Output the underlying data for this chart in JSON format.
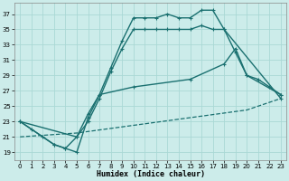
{
  "xlabel": "Humidex (Indice chaleur)",
  "background_color": "#ccecea",
  "grid_color": "#aad8d5",
  "line_color": "#1a7070",
  "xlim": [
    -0.5,
    23.5
  ],
  "ylim": [
    18,
    38.5
  ],
  "yticks": [
    19,
    21,
    23,
    25,
    27,
    29,
    31,
    33,
    35,
    37
  ],
  "xticks": [
    0,
    1,
    2,
    3,
    4,
    5,
    6,
    7,
    8,
    9,
    10,
    11,
    12,
    13,
    14,
    15,
    16,
    17,
    18,
    19,
    20,
    21,
    22,
    23
  ],
  "series": [
    {
      "x": [
        0,
        1,
        2,
        3,
        4,
        5,
        6,
        7,
        8,
        9,
        10,
        11,
        12,
        13,
        14,
        15,
        16,
        17,
        18,
        23
      ],
      "y": [
        23,
        22,
        21,
        20,
        19.5,
        19,
        23.5,
        26.5,
        30,
        33.5,
        36.5,
        36.5,
        36.5,
        37,
        36.5,
        36.5,
        37.5,
        37.5,
        35,
        26
      ],
      "ls": "-",
      "marker": "+",
      "lw": 1.0
    },
    {
      "x": [
        0,
        3,
        4,
        5,
        6,
        7,
        8,
        9,
        10,
        11,
        12,
        13,
        14,
        15,
        16,
        17,
        18,
        19,
        20,
        23
      ],
      "y": [
        23,
        20,
        19.5,
        21,
        23,
        26,
        29.5,
        32.5,
        35,
        35,
        35,
        35,
        35,
        35,
        35.5,
        35,
        35,
        32,
        29,
        26.5
      ],
      "ls": "-",
      "marker": "+",
      "lw": 1.0
    },
    {
      "x": [
        0,
        5,
        6,
        7,
        10,
        15,
        18,
        19,
        20,
        21,
        22,
        23
      ],
      "y": [
        23,
        21,
        24,
        26.5,
        27.5,
        28.5,
        30.5,
        32.5,
        29,
        28.5,
        27.5,
        26.5
      ],
      "ls": "-",
      "marker": "+",
      "lw": 1.0
    },
    {
      "x": [
        0,
        5,
        10,
        15,
        20,
        23
      ],
      "y": [
        21,
        21.5,
        22.5,
        23.5,
        24.5,
        26
      ],
      "ls": "--",
      "marker": null,
      "lw": 0.9
    }
  ]
}
